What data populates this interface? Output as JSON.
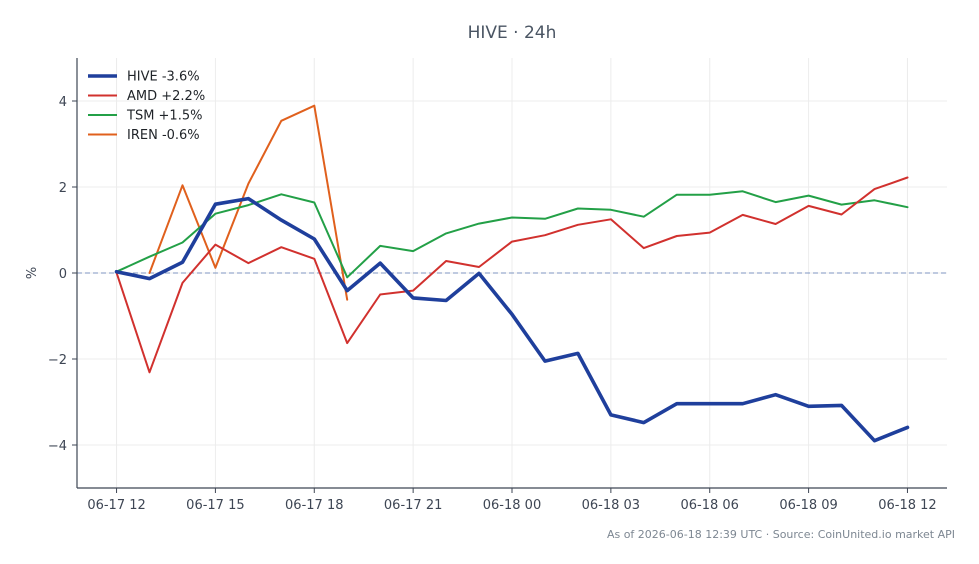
{
  "chart_data": {
    "type": "line",
    "title": "HIVE · 24h",
    "xlabel": "",
    "ylabel": "%",
    "x_tick_labels": [
      "06-17 12",
      "06-17 15",
      "06-17 18",
      "06-17 21",
      "06-18 00",
      "06-18 03",
      "06-18 06",
      "06-18 09",
      "06-18 12"
    ],
    "y_ticks": [
      4,
      2,
      0,
      -2,
      -4
    ],
    "y_tick_labels": [
      "4",
      "2",
      "0",
      "−2",
      "−4"
    ],
    "ylim": [
      -5.0,
      5.0
    ],
    "xlim_hours": [
      -1.2,
      25.2
    ],
    "x_unit": "hours from 06-17 12:00",
    "grid": true,
    "baseline": 0,
    "legend_position": "top-left",
    "series": [
      {
        "name": "HIVE -3.6%",
        "color": "#1f3f9c",
        "stroke_width": 3.6,
        "x": [
          0,
          1,
          2,
          3,
          4,
          5,
          6,
          7,
          8,
          9,
          10,
          11,
          12,
          13,
          14,
          15,
          16,
          17,
          18,
          19,
          20,
          21,
          22,
          23,
          24
        ],
        "values": [
          0.03,
          -0.13,
          0.25,
          1.6,
          1.73,
          1.23,
          0.79,
          -0.41,
          0.23,
          -0.58,
          -0.64,
          -0.01,
          -0.96,
          -2.05,
          -1.87,
          -3.3,
          -3.48,
          -3.04,
          -3.04,
          -3.04,
          -2.83,
          -3.1,
          -3.08,
          -3.9,
          -3.59
        ]
      },
      {
        "name": "AMD +2.2%",
        "color": "#d1312e",
        "stroke_width": 2,
        "x": [
          0,
          1,
          2,
          3,
          4,
          5,
          6,
          7,
          8,
          9,
          10,
          11,
          12,
          13,
          14,
          15,
          16,
          17,
          18,
          19,
          20,
          21,
          22,
          23,
          24
        ],
        "values": [
          0.01,
          -2.31,
          -0.23,
          0.66,
          0.23,
          0.6,
          0.33,
          -1.63,
          -0.5,
          -0.41,
          0.28,
          0.14,
          0.73,
          0.88,
          1.12,
          1.25,
          0.58,
          0.86,
          0.94,
          1.35,
          1.14,
          1.56,
          1.36,
          1.95,
          2.22
        ]
      },
      {
        "name": "TSM +1.5%",
        "color": "#23a047",
        "stroke_width": 2,
        "x": [
          0,
          1,
          2,
          3,
          4,
          5,
          6,
          7,
          8,
          9,
          10,
          11,
          12,
          13,
          14,
          15,
          16,
          17,
          18,
          19,
          20,
          21,
          22,
          23,
          24
        ],
        "values": [
          0.03,
          0.38,
          0.71,
          1.38,
          1.58,
          1.83,
          1.64,
          -0.1,
          0.63,
          0.51,
          0.92,
          1.15,
          1.29,
          1.26,
          1.5,
          1.47,
          1.31,
          1.82,
          1.82,
          1.9,
          1.65,
          1.8,
          1.59,
          1.69,
          1.53
        ]
      },
      {
        "name": "IREN -0.6%",
        "color": "#e0601d",
        "stroke_width": 2,
        "x": [
          1,
          2,
          3,
          4,
          5,
          6,
          7
        ],
        "values": [
          0.0,
          2.04,
          0.12,
          2.08,
          3.54,
          3.89,
          -0.62
        ]
      }
    ],
    "footer": "As of 2026-06-18 12:39 UTC · Source: CoinUnited.io market API"
  }
}
